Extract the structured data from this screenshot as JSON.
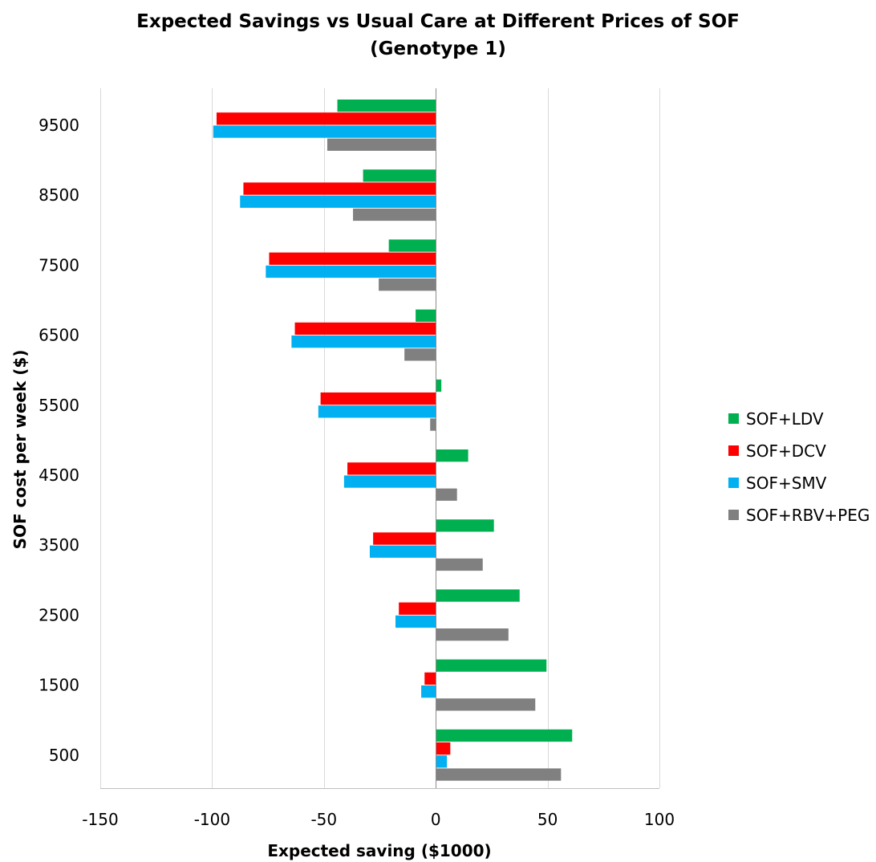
{
  "chart_data": {
    "type": "bar",
    "orientation": "horizontal",
    "title_line1": "Expected Savings  vs Usual Care at Different Prices of SOF",
    "title_line2": "(Genotype 1)",
    "xlabel": "Expected saving ($1000)",
    "ylabel": "SOF cost per week ($)",
    "xlim": [
      -150,
      100
    ],
    "xticks": [
      -150,
      -100,
      -50,
      0,
      50,
      100
    ],
    "grid": "vertical",
    "legend_position": "right",
    "categories": [
      "500",
      "1500",
      "2500",
      "3500",
      "4500",
      "5500",
      "6500",
      "7500",
      "8500",
      "9500"
    ],
    "series": [
      {
        "name": "SOF+LDV",
        "color": "#00b050",
        "values": [
          61,
          49.5,
          37.5,
          26,
          14.5,
          2.5,
          -9,
          -21,
          -32.5,
          -44
        ]
      },
      {
        "name": "SOF+DCV",
        "color": "#ff0000",
        "values": [
          6.5,
          -5,
          -16.5,
          -28,
          -39.5,
          -51.5,
          -63,
          -74.5,
          -86,
          -98
        ]
      },
      {
        "name": "SOF+SMV",
        "color": "#00b0f0",
        "values": [
          5,
          -6.5,
          -18,
          -29.5,
          -41,
          -52.5,
          -64.5,
          -76,
          -87.5,
          -99.5
        ]
      },
      {
        "name": "SOF+RBV+PEG",
        "color": "#808080",
        "values": [
          56,
          44.5,
          32.5,
          21,
          9.5,
          -2.5,
          -14,
          -25.5,
          -37,
          -48.5
        ]
      }
    ]
  }
}
